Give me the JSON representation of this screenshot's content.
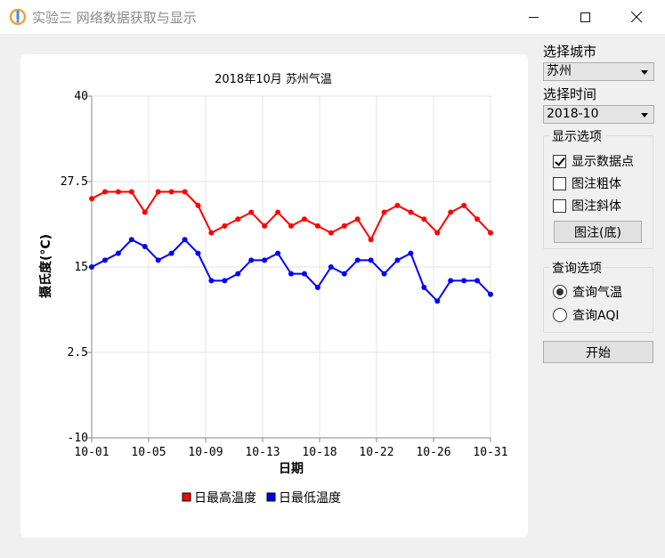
{
  "window": {
    "title": "实验三 网络数据获取与显示",
    "icon": "app-logo-icon"
  },
  "panel": {
    "city_label": "选择城市",
    "city_value": "苏州",
    "time_label": "选择时间",
    "time_value": "2018-10",
    "display_group": {
      "title": "显示选项",
      "options": [
        {
          "label": "显示数据点",
          "checked": true
        },
        {
          "label": "图注粗体",
          "checked": false
        },
        {
          "label": "图注斜体",
          "checked": false
        }
      ],
      "legend_button": "图注(底)"
    },
    "query_group": {
      "title": "查询选项",
      "options": [
        {
          "label": "查询气温",
          "selected": true
        },
        {
          "label": "查询AQI",
          "selected": false
        }
      ]
    },
    "start_button": "开始"
  },
  "chart_data": {
    "type": "line",
    "title": "2018年10月 苏州气温",
    "xlabel": "日期",
    "ylabel": "摄氏度(°C)",
    "ylim": [
      -10,
      40
    ],
    "yticks": [
      "40",
      "27.5",
      "15",
      "2.5",
      "-10"
    ],
    "xticks": [
      "10-01",
      "10-05",
      "10-09",
      "10-13",
      "10-18",
      "10-22",
      "10-26",
      "10-31"
    ],
    "grid": true,
    "legend_position": "bottom",
    "series": [
      {
        "name": "日最高温度",
        "color": "#ff0000",
        "values": [
          25,
          26,
          26,
          26,
          23,
          26,
          26,
          26,
          24,
          20,
          21,
          22,
          23,
          21,
          23,
          21,
          22,
          21,
          20,
          21,
          22,
          19,
          23,
          24,
          23,
          22,
          20,
          23,
          24,
          22,
          20
        ]
      },
      {
        "name": "日最低温度",
        "color": "#0000ff",
        "values": [
          15,
          16,
          17,
          19,
          18,
          16,
          17,
          19,
          17,
          13,
          13,
          14,
          16,
          16,
          17,
          14,
          14,
          12,
          15,
          14,
          16,
          16,
          14,
          16,
          17,
          12,
          10,
          13,
          13,
          13,
          11
        ]
      }
    ]
  }
}
